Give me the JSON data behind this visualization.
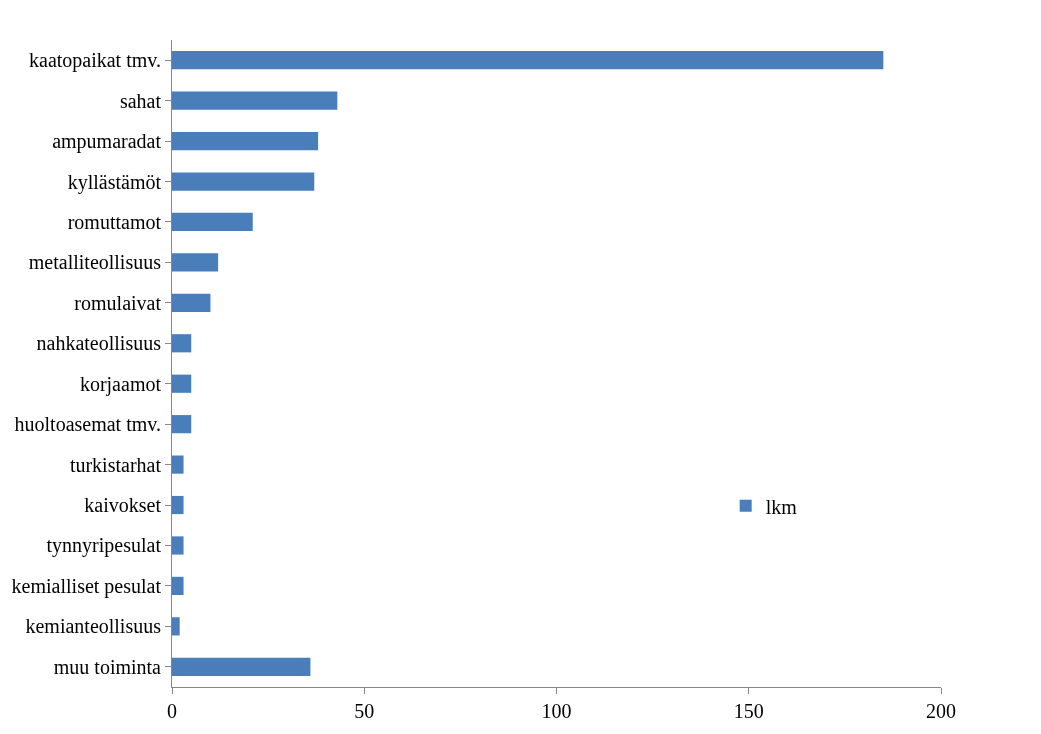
{
  "chart_data": {
    "type": "bar",
    "orientation": "horizontal",
    "categories": [
      "kaatopaikat tmv.",
      "sahat",
      "ampumaradat",
      "kyllästämöt",
      "romuttamot",
      "metalliteollisuus",
      "romulaivat",
      "nahkateollisuus",
      "korjaamot",
      "huoltoasemat tmv.",
      "turkistarhat",
      "kaivokset",
      "tynnyripesulat",
      "kemialliset pesulat",
      "kemianteollisuus",
      "muu toiminta"
    ],
    "series": [
      {
        "name": "lkm",
        "color": "#4a7ebb",
        "values": [
          185,
          43,
          38,
          37,
          21,
          12,
          10,
          5,
          5,
          5,
          3,
          3,
          3,
          3,
          2,
          36
        ]
      }
    ],
    "xlim": [
      0,
      200
    ],
    "xticks": [
      0,
      50,
      100,
      150,
      200
    ],
    "legend": "right"
  }
}
